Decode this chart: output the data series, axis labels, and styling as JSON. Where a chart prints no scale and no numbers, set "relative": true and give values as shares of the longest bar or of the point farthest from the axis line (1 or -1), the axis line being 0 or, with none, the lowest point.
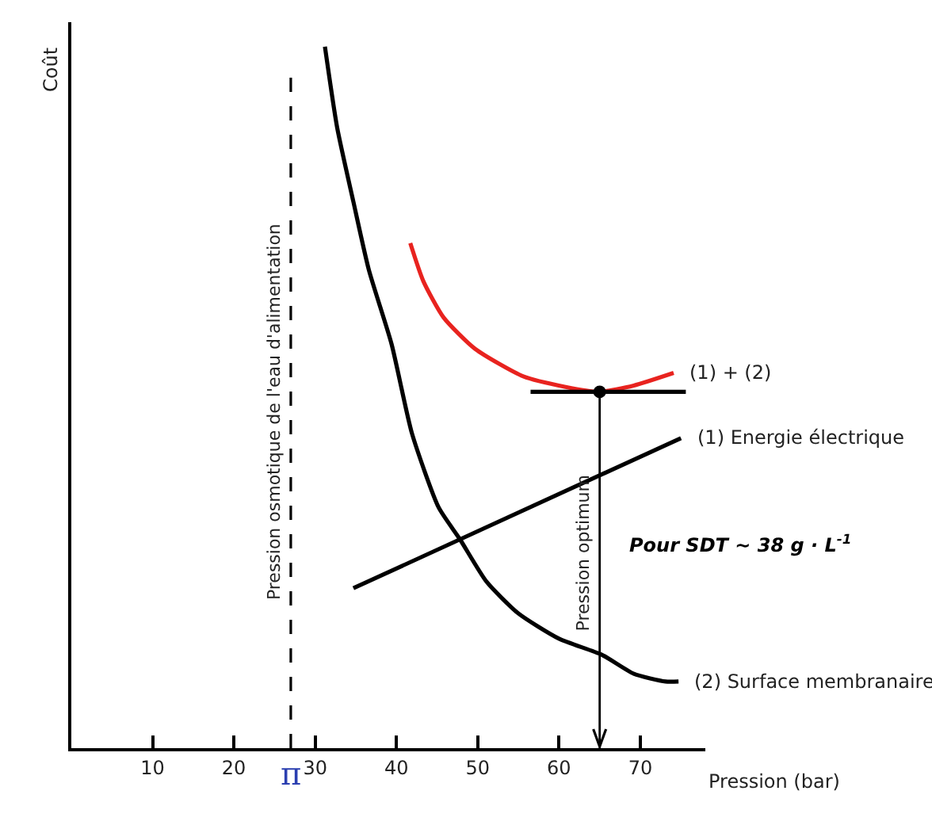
{
  "chart_data": {
    "type": "line",
    "relative": true,
    "xlabel": "Pression (bar)",
    "ylabel": "Coût",
    "xlim": [
      0,
      78
    ],
    "xticks": [
      10,
      20,
      30,
      40,
      50,
      60,
      70
    ],
    "legend": false,
    "marker": "none",
    "line_style": "solid",
    "series": [
      {
        "name": "(2) Surface membranaire",
        "color": "#000000",
        "x": [
          31.2,
          32.7,
          34.7,
          36.6,
          39.4,
          41.9,
          45.2,
          47.8,
          51.1,
          55.0,
          60.0,
          65.3,
          69.2,
          73.1,
          74.7
        ],
        "values": [
          1.0,
          0.885,
          0.779,
          0.682,
          0.576,
          0.449,
          0.343,
          0.298,
          0.237,
          0.192,
          0.156,
          0.133,
          0.106,
          0.095,
          0.095
        ]
      },
      {
        "name": "(1) Energie électrique",
        "color": "#000000",
        "x": [
          34.7,
          75.0
        ],
        "values": [
          0.228,
          0.442
        ]
      },
      {
        "name": "(1) + (2)",
        "color": "#e8231f",
        "x": [
          41.7,
          43.3,
          45.8,
          49.7,
          55.6,
          60.8,
          64.9,
          69.2,
          74.1
        ],
        "values": [
          0.72,
          0.666,
          0.614,
          0.569,
          0.53,
          0.515,
          0.508,
          0.517,
          0.535
        ]
      },
      {
        "color": "#000000",
        "x": [
          56.5,
          75.6
        ],
        "values": [
          0.508,
          0.508
        ]
      },
      {
        "type": "scatter",
        "marker": "circle",
        "color": "#000000",
        "x": [
          65
        ],
        "values": [
          0.508
        ]
      }
    ],
    "ref_lines": [
      {
        "axis": "x",
        "value": 27,
        "label": "Pression osmotique de l'eau d'alimentation",
        "line_style": "dashed",
        "color": "#000000"
      },
      {
        "axis": "x",
        "value": 65,
        "label": "Pression optimum",
        "line_style": "solid",
        "color": "#000000"
      }
    ],
    "annotations": [
      "Pour SDT ~ 38 g · L$^{-1}$",
      {
        "text": "π",
        "x": 27,
        "y": 0
      }
    ]
  }
}
